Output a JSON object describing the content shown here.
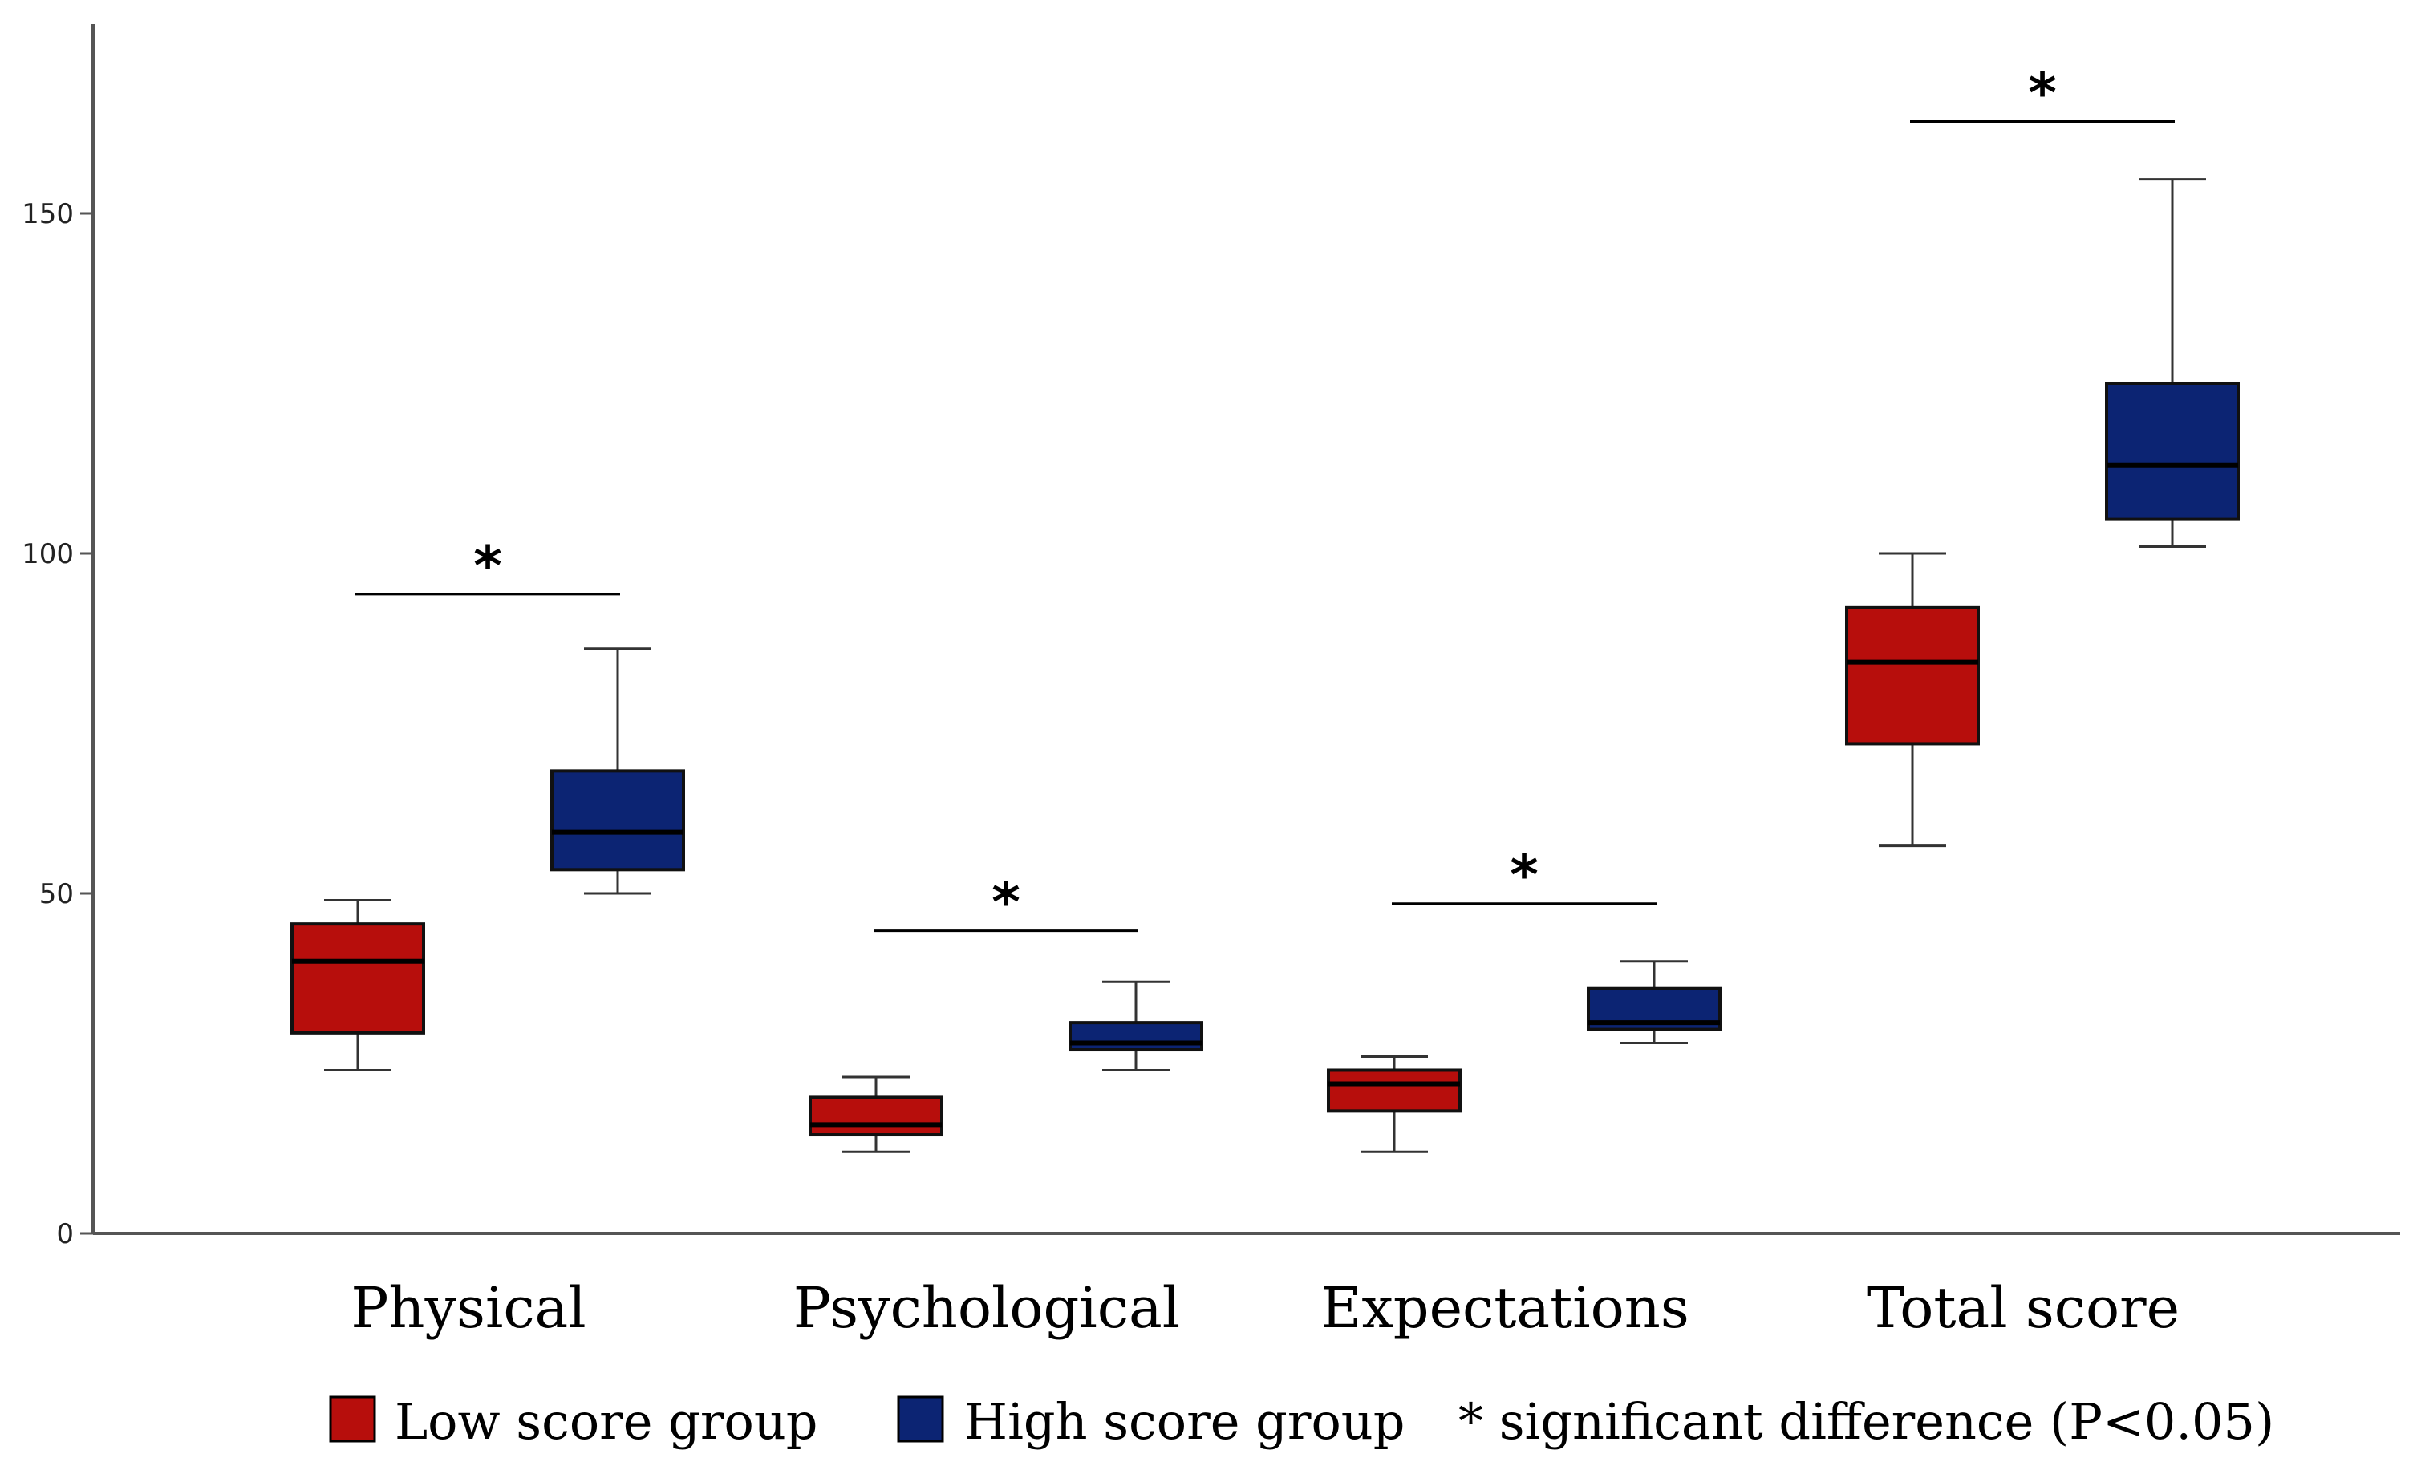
{
  "chart_data": {
    "type": "box",
    "title": "",
    "xlabel": "",
    "ylabel": "",
    "ylim": [
      0,
      175
    ],
    "yticks": [
      0,
      50,
      100,
      150
    ],
    "grid": false,
    "legend_position": "bottom",
    "categories": [
      "Physical",
      "Psychological",
      "Expectations",
      "Total score"
    ],
    "series": [
      {
        "name": "Low score group",
        "color": "#b70e0c",
        "boxes": [
          {
            "min": 24,
            "q1": 29.5,
            "median": 40,
            "q3": 45.5,
            "max": 49
          },
          {
            "min": 12,
            "q1": 14.5,
            "median": 16,
            "q3": 20,
            "max": 23
          },
          {
            "min": 12,
            "q1": 18,
            "median": 22,
            "q3": 24,
            "max": 26
          },
          {
            "min": 57,
            "q1": 72,
            "median": 84,
            "q3": 92,
            "max": 100
          }
        ]
      },
      {
        "name": "High score group",
        "color": "#0c2473",
        "boxes": [
          {
            "min": 50,
            "q1": 53.5,
            "median": 59,
            "q3": 68,
            "max": 86
          },
          {
            "min": 24,
            "q1": 27,
            "median": 28,
            "q3": 31,
            "max": 37
          },
          {
            "min": 28,
            "q1": 30,
            "median": 31,
            "q3": 36,
            "max": 40
          },
          {
            "min": 101,
            "q1": 105,
            "median": 113,
            "q3": 125,
            "max": 155
          }
        ]
      }
    ],
    "significance": [
      {
        "category": "Physical",
        "y": 94,
        "label": "*"
      },
      {
        "category": "Psychological",
        "y": 44.5,
        "label": "*"
      },
      {
        "category": "Expectations",
        "y": 48.5,
        "label": "*"
      },
      {
        "category": "Total score",
        "y": 163.5,
        "label": "*"
      }
    ],
    "legend_note": "* significant difference (P<0.05)"
  }
}
